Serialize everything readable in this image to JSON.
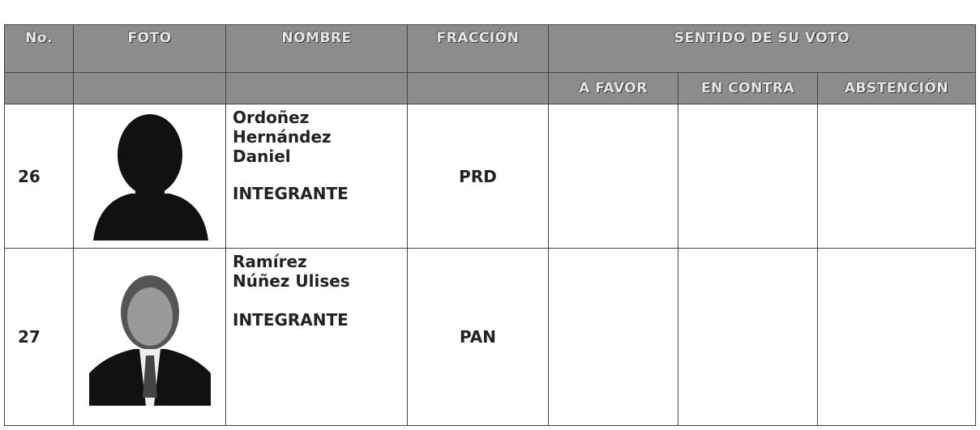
{
  "header": {
    "no": "No.",
    "foto": "FOTO",
    "nombre": "NOMBRE",
    "fraccion": "FRACCIÓN",
    "sentido": "SENTIDO DE SU VOTO",
    "sub": [
      "A FAVOR",
      "EN CONTRA",
      "ABSTENCIÓN"
    ]
  },
  "rows": [
    {
      "no": "26",
      "name": [
        "Ordoñez",
        "Hernández",
        "Daniel"
      ],
      "role": "INTEGRANTE",
      "fraccion": "PRD"
    },
    {
      "no": "27",
      "name": [
        "Ramírez",
        "Núñez Ulises"
      ],
      "role": "INTEGRANTE",
      "fraccion": "PAN"
    }
  ]
}
